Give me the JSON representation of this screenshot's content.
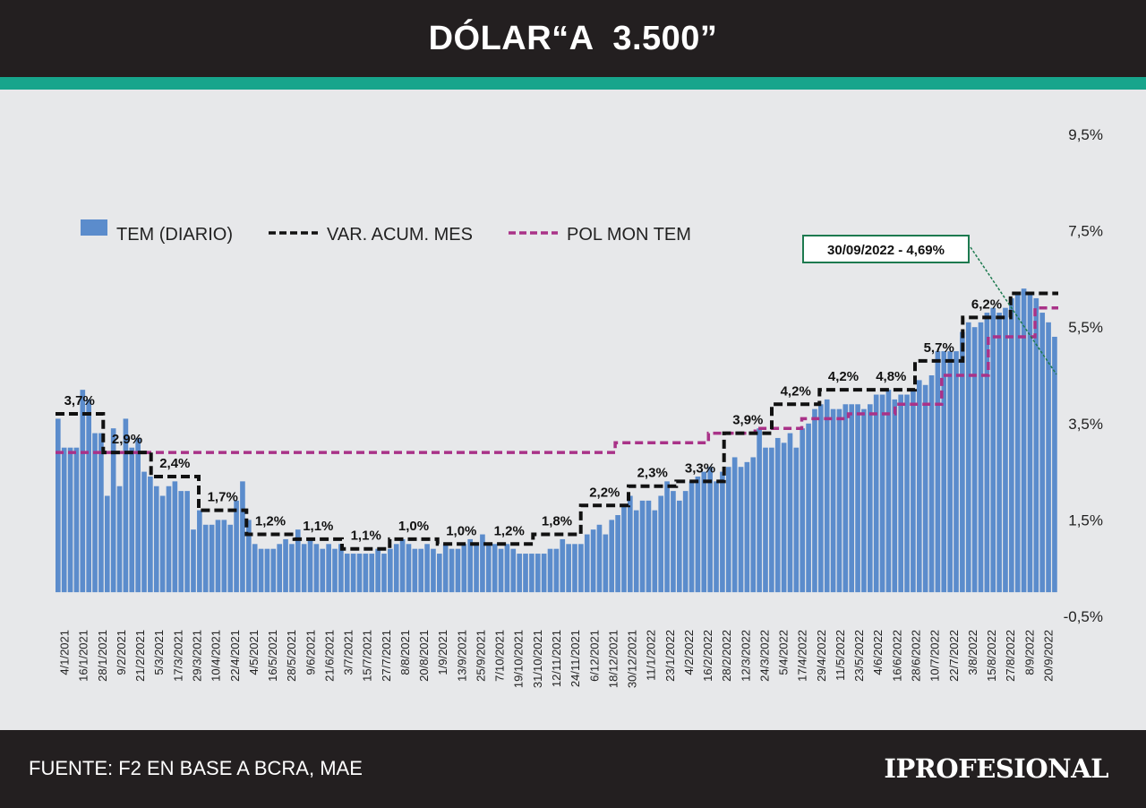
{
  "header": {
    "title": "DÓLAR“A  3.500”"
  },
  "footer": {
    "source": "FUENTE: F2 EN BASE A BCRA, MAE",
    "logo": "IPROFESIONAL"
  },
  "colors": {
    "bars": "#5b8ccc",
    "var_acum": "#111111",
    "pol_mon": "#a93288",
    "accent": "#17a58c",
    "annotation_border": "#1d7a4f"
  },
  "chart_data": {
    "type": "bar",
    "y_tick_labels": [
      "9,5%",
      "7,5%",
      "5,5%",
      "3,5%",
      "1,5%",
      "-0,5%"
    ],
    "ylim": [
      -0.5,
      9.5
    ],
    "grid": false,
    "legend_placement": "top-left",
    "legend": [
      {
        "key": "tem",
        "label": "TEM (DIARIO)",
        "style": "bar"
      },
      {
        "key": "var",
        "label": "VAR. ACUM. MES",
        "style": "dashed"
      },
      {
        "key": "pol",
        "label": "POL MON TEM",
        "style": "dashed"
      }
    ],
    "x_tick_labels": [
      "4/1/2021",
      "16/1/2021",
      "28/1/2021",
      "9/2/2021",
      "21/2/2021",
      "5/3/2021",
      "17/3/2021",
      "29/3/2021",
      "10/4/2021",
      "22/4/2021",
      "4/5/2021",
      "16/5/2021",
      "28/5/2021",
      "9/6/2021",
      "21/6/2021",
      "3/7/2021",
      "15/7/2021",
      "27/7/2021",
      "8/8/2021",
      "20/8/2021",
      "1/9/2021",
      "13/9/2021",
      "25/9/2021",
      "7/10/2021",
      "19/10/2021",
      "31/10/2021",
      "12/11/2021",
      "24/11/2021",
      "6/12/2021",
      "18/12/2021",
      "30/12/2021",
      "11/1/2022",
      "23/1/2022",
      "4/2/2022",
      "16/2/2022",
      "28/2/2022",
      "12/3/2022",
      "24/3/2022",
      "5/4/2022",
      "17/4/2022",
      "29/4/2022",
      "11/5/2022",
      "23/5/2022",
      "4/6/2022",
      "16/6/2022",
      "28/6/2022",
      "10/7/2022",
      "22/7/2022",
      "3/8/2022",
      "15/8/2022",
      "27/8/2022",
      "8/9/2022",
      "20/9/2022"
    ],
    "series": [
      {
        "name": "TEM (DIARIO)",
        "values": [
          3.6,
          3.0,
          3.0,
          3.0,
          4.2,
          4.0,
          3.3,
          3.3,
          2.0,
          3.4,
          2.2,
          3.6,
          3.0,
          3.2,
          2.5,
          2.4,
          2.2,
          2.0,
          2.2,
          2.3,
          2.1,
          2.1,
          1.3,
          1.7,
          1.4,
          1.4,
          1.5,
          1.5,
          1.4,
          1.9,
          2.3,
          1.5,
          1.0,
          0.9,
          0.9,
          0.9,
          1.0,
          1.1,
          1.0,
          1.3,
          1.0,
          1.1,
          1.0,
          0.9,
          1.0,
          0.9,
          1.0,
          0.8,
          0.8,
          0.8,
          0.8,
          0.8,
          0.9,
          0.8,
          0.9,
          1.0,
          1.1,
          1.0,
          0.9,
          0.9,
          1.0,
          0.9,
          0.8,
          1.0,
          0.9,
          0.9,
          1.0,
          1.1,
          1.0,
          1.2,
          1.0,
          1.0,
          0.9,
          1.0,
          0.9,
          0.8,
          0.8,
          0.8,
          0.8,
          0.8,
          0.9,
          0.9,
          1.1,
          1.0,
          1.0,
          1.0,
          1.2,
          1.3,
          1.4,
          1.2,
          1.5,
          1.6,
          1.8,
          2.0,
          1.7,
          1.9,
          1.9,
          1.7,
          2.0,
          2.3,
          2.1,
          1.9,
          2.1,
          2.3,
          2.4,
          2.5,
          2.6,
          2.3,
          2.5,
          2.6,
          2.8,
          2.6,
          2.7,
          2.8,
          3.4,
          3.0,
          3.0,
          3.2,
          3.1,
          3.3,
          3.0,
          3.4,
          3.5,
          3.8,
          3.9,
          4.0,
          3.8,
          3.8,
          3.9,
          3.9,
          3.9,
          3.8,
          3.9,
          4.1,
          4.1,
          4.2,
          4.0,
          4.1,
          4.1,
          4.2,
          4.4,
          4.3,
          4.5,
          5.0,
          5.0,
          5.0,
          5.0,
          5.4,
          5.6,
          5.5,
          5.6,
          5.8,
          5.9,
          5.8,
          5.9,
          6.1,
          6.2,
          6.3,
          6.2,
          6.1,
          5.8,
          5.6,
          5.3
        ]
      },
      {
        "name": "VAR. ACUM. MES",
        "values": [
          3.7,
          3.7,
          3.7,
          3.7,
          2.9,
          2.9,
          2.9,
          2.9,
          2.4,
          2.4,
          2.4,
          2.4,
          1.7,
          1.7,
          1.7,
          1.7,
          1.2,
          1.2,
          1.2,
          1.2,
          1.1,
          1.1,
          1.1,
          1.1,
          0.9,
          0.9,
          0.9,
          0.9,
          1.1,
          1.1,
          1.1,
          1.1,
          1.0,
          1.0,
          1.0,
          1.0,
          1.0,
          1.0,
          1.0,
          1.0,
          1.2,
          1.2,
          1.2,
          1.2,
          1.8,
          1.8,
          1.8,
          1.8,
          2.2,
          2.2,
          2.2,
          2.2,
          2.3,
          2.3,
          2.3,
          2.3,
          3.3,
          3.3,
          3.3,
          3.3,
          3.9,
          3.9,
          3.9,
          3.9,
          4.2,
          4.2,
          4.2,
          4.2,
          4.2,
          4.2,
          4.2,
          4.2,
          4.8,
          4.8,
          4.8,
          4.8,
          5.7,
          5.7,
          5.7,
          5.7,
          6.2,
          6.2,
          6.2,
          6.2
        ]
      },
      {
        "name": "POL MON TEM",
        "values": [
          2.9,
          2.9,
          2.9,
          2.9,
          2.9,
          2.9,
          2.9,
          2.9,
          2.9,
          2.9,
          2.9,
          2.9,
          2.9,
          2.9,
          2.9,
          2.9,
          2.9,
          2.9,
          2.9,
          2.9,
          2.9,
          2.9,
          2.9,
          2.9,
          2.9,
          2.9,
          2.9,
          2.9,
          2.9,
          2.9,
          2.9,
          2.9,
          2.9,
          2.9,
          2.9,
          2.9,
          2.9,
          2.9,
          2.9,
          2.9,
          2.9,
          2.9,
          2.9,
          2.9,
          2.9,
          2.9,
          2.9,
          2.9,
          3.1,
          3.1,
          3.1,
          3.1,
          3.1,
          3.1,
          3.1,
          3.1,
          3.3,
          3.3,
          3.3,
          3.3,
          3.4,
          3.4,
          3.4,
          3.4,
          3.6,
          3.6,
          3.6,
          3.6,
          3.7,
          3.7,
          3.7,
          3.7,
          3.9,
          3.9,
          3.9,
          3.9,
          4.5,
          4.5,
          4.5,
          4.5,
          5.3,
          5.3,
          5.3,
          5.3,
          5.9,
          5.9
        ]
      }
    ],
    "data_labels": [
      "3,7%",
      "2,9%",
      "2,4%",
      "1,7%",
      "1,2%",
      "1,1%",
      "1,1%",
      "1,0%",
      "1,0%",
      "1,2%",
      "1,8%",
      "2,2%",
      "2,3%",
      "3,3%",
      "3,9%",
      "4,2%",
      "4,2%",
      "4,8%",
      "5,7%",
      "6,2%"
    ],
    "annotation": "30/09/2022 - 4,69%"
  }
}
